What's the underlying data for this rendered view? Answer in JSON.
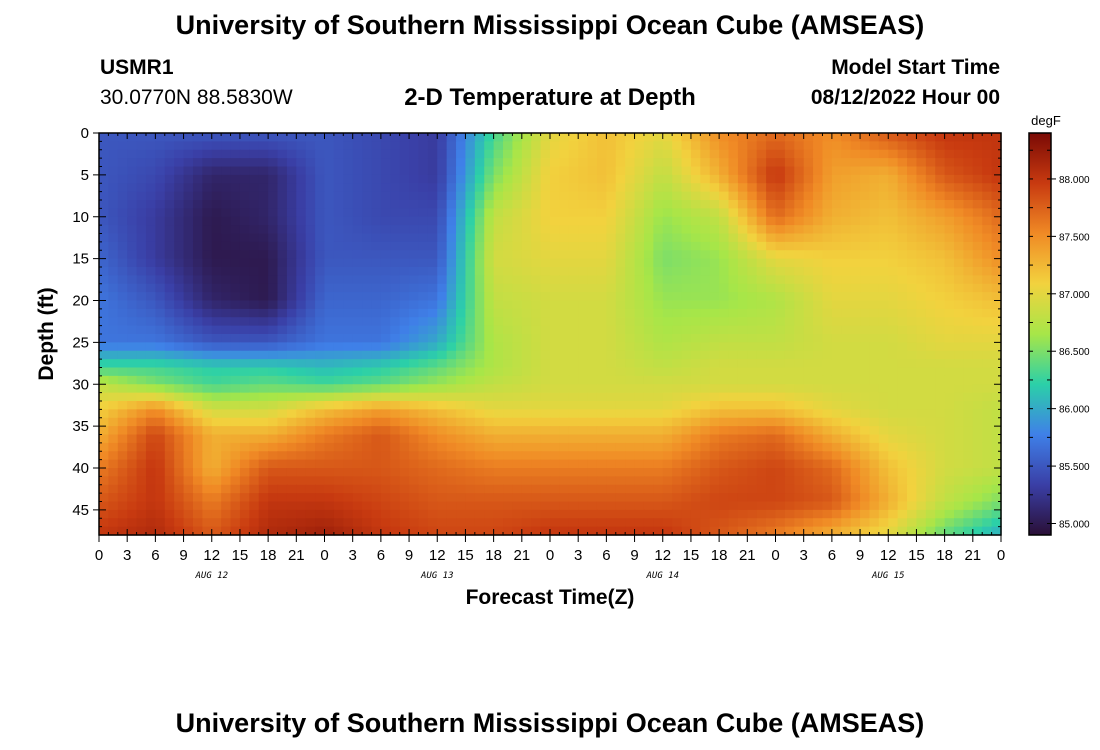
{
  "page": {
    "title": "University of Southern Mississippi Ocean Cube (AMSEAS)",
    "bottom_title": "University of Southern Mississippi Ocean Cube (AMSEAS)",
    "station": "USMR1",
    "coordinates": "30.0770N  88.5830W",
    "subtitle": "2-D Temperature at Depth",
    "model_start_label": "Model Start Time",
    "model_start_value": "08/12/2022 Hour 00"
  },
  "colors": {
    "background": "#ffffff",
    "colormap": [
      "#2a0f36",
      "#3a3fa6",
      "#3f80e8",
      "#2bd0a8",
      "#a7e648",
      "#f2d23e",
      "#f08a25",
      "#c83a10",
      "#7a0a05"
    ]
  },
  "chart_data": {
    "type": "heatmap",
    "title": "2-D Temperature at Depth",
    "xlabel": "Forecast Time(Z)",
    "ylabel": "Depth (ft)",
    "x_tick_labels": [
      "0",
      "3",
      "6",
      "9",
      "12",
      "15",
      "18",
      "21",
      "0",
      "3",
      "6",
      "9",
      "12",
      "15",
      "18",
      "21",
      "0",
      "3",
      "6",
      "9",
      "12",
      "15",
      "18",
      "21",
      "0",
      "3",
      "6",
      "9",
      "12",
      "15",
      "18",
      "21",
      "0"
    ],
    "date_labels": [
      "AUG 12",
      "AUG 13",
      "AUG 14",
      "AUG 15"
    ],
    "x_hours": [
      0,
      96
    ],
    "y_ticks": [
      0,
      5,
      10,
      15,
      20,
      25,
      30,
      35,
      40,
      45
    ],
    "ylim": [
      0,
      48
    ],
    "colorbar": {
      "unit": "degF",
      "ticks": [
        "85.000",
        "85.500",
        "86.000",
        "86.500",
        "87.000",
        "87.500",
        "88.000"
      ],
      "range": [
        84.9,
        88.4
      ]
    },
    "hours": [
      0,
      6,
      12,
      18,
      24,
      30,
      36,
      42,
      48,
      54,
      60,
      66,
      72,
      78,
      84,
      90,
      96
    ],
    "depths": [
      0,
      5,
      10,
      15,
      20,
      25,
      28,
      30,
      33,
      36,
      40,
      44,
      48
    ],
    "values": [
      [
        85.5,
        85.5,
        85.5,
        85.5,
        85.5,
        85.4,
        85.3,
        86.3,
        87.0,
        87.2,
        87.0,
        87.5,
        87.7,
        87.5,
        87.8,
        88.0,
        88.0
      ],
      [
        85.5,
        85.4,
        85.1,
        85.1,
        85.5,
        85.4,
        85.3,
        86.5,
        87.1,
        87.2,
        86.8,
        87.3,
        88.0,
        87.4,
        87.3,
        87.8,
        88.0
      ],
      [
        85.5,
        85.3,
        85.0,
        85.1,
        85.5,
        85.4,
        85.4,
        86.8,
        87.1,
        87.1,
        86.6,
        86.8,
        87.7,
        87.3,
        87.2,
        87.4,
        87.7
      ],
      [
        85.6,
        85.3,
        85.0,
        85.0,
        85.5,
        85.5,
        85.5,
        86.9,
        87.0,
        87.0,
        86.5,
        86.6,
        87.0,
        87.1,
        87.1,
        87.2,
        87.5
      ],
      [
        85.7,
        85.5,
        85.1,
        85.0,
        85.6,
        85.6,
        85.7,
        86.8,
        86.9,
        86.9,
        86.6,
        86.6,
        86.7,
        87.0,
        87.0,
        87.1,
        87.2
      ],
      [
        85.7,
        85.7,
        85.5,
        85.5,
        85.7,
        85.7,
        86.0,
        86.7,
        86.9,
        86.9,
        86.7,
        86.8,
        86.8,
        86.9,
        86.9,
        87.0,
        87.0
      ],
      [
        86.3,
        86.3,
        86.2,
        86.2,
        86.1,
        86.2,
        86.4,
        86.7,
        86.9,
        86.9,
        86.8,
        86.9,
        86.9,
        86.9,
        86.9,
        86.9,
        86.9
      ],
      [
        86.8,
        86.5,
        86.3,
        86.4,
        86.3,
        86.4,
        86.6,
        86.8,
        86.9,
        86.9,
        86.9,
        86.9,
        86.9,
        86.9,
        86.9,
        86.9,
        86.9
      ],
      [
        87.1,
        87.5,
        86.9,
        86.9,
        87.2,
        87.4,
        87.2,
        87.0,
        87.0,
        87.0,
        87.0,
        87.2,
        87.2,
        87.0,
        86.9,
        86.9,
        86.8
      ],
      [
        87.3,
        87.9,
        87.3,
        87.3,
        87.6,
        87.8,
        87.5,
        87.3,
        87.3,
        87.3,
        87.3,
        87.6,
        87.7,
        87.3,
        87.0,
        86.9,
        86.8
      ],
      [
        87.6,
        88.0,
        87.3,
        87.8,
        87.8,
        87.8,
        87.7,
        87.6,
        87.6,
        87.6,
        87.6,
        87.8,
        87.9,
        87.7,
        87.2,
        86.9,
        86.8
      ],
      [
        87.8,
        88.0,
        87.6,
        88.0,
        88.0,
        87.9,
        87.8,
        87.8,
        87.8,
        87.8,
        87.8,
        87.9,
        87.9,
        87.8,
        87.3,
        86.8,
        86.5
      ],
      [
        88.0,
        88.1,
        87.8,
        88.1,
        88.2,
        88.0,
        87.9,
        87.9,
        88.0,
        88.0,
        88.0,
        87.8,
        87.6,
        87.3,
        87.0,
        86.4,
        86.0
      ]
    ]
  }
}
